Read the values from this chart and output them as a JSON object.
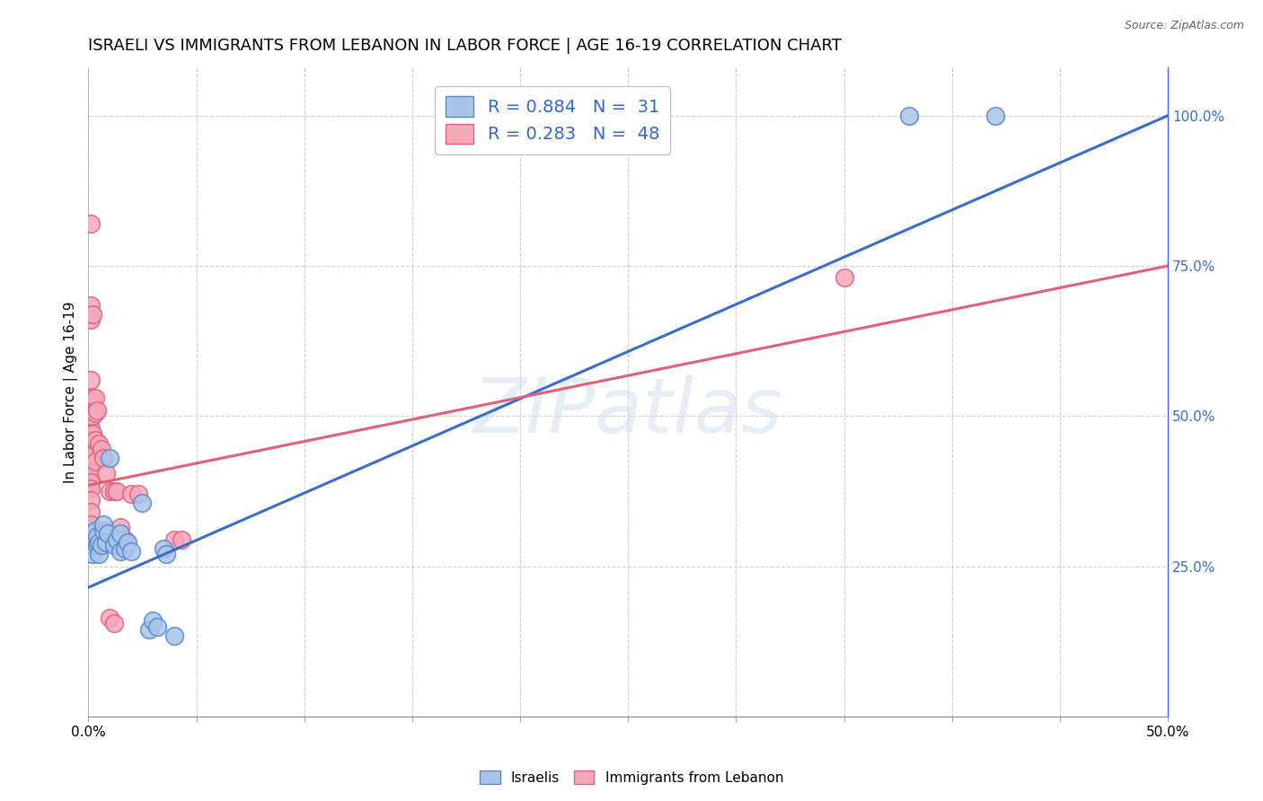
{
  "title": "ISRAELI VS IMMIGRANTS FROM LEBANON IN LABOR FORCE | AGE 16-19 CORRELATION CHART",
  "source": "Source: ZipAtlas.com",
  "ylabel": "In Labor Force | Age 16-19",
  "ylabel_right_labels": [
    "25.0%",
    "50.0%",
    "75.0%",
    "100.0%"
  ],
  "ylabel_right_positions": [
    0.25,
    0.5,
    0.75,
    1.0
  ],
  "grid_color": "#d0d0d0",
  "watermark_text": "ZIPatlas",
  "legend_blue_r": "R = 0.884",
  "legend_blue_n": "N =  31",
  "legend_pink_r": "R = 0.283",
  "legend_pink_n": "N =  48",
  "blue_color": "#aac4e8",
  "pink_color": "#f4a8b8",
  "blue_edge_color": "#5588cc",
  "pink_edge_color": "#e06080",
  "blue_line_color": "#3a6cc8",
  "pink_line_color": "#e0607a",
  "blue_scatter": [
    [
      0.001,
      0.305
    ],
    [
      0.002,
      0.285
    ],
    [
      0.002,
      0.27
    ],
    [
      0.003,
      0.295
    ],
    [
      0.003,
      0.31
    ],
    [
      0.004,
      0.285
    ],
    [
      0.004,
      0.3
    ],
    [
      0.005,
      0.27
    ],
    [
      0.005,
      0.29
    ],
    [
      0.006,
      0.285
    ],
    [
      0.007,
      0.31
    ],
    [
      0.007,
      0.32
    ],
    [
      0.008,
      0.29
    ],
    [
      0.009,
      0.305
    ],
    [
      0.01,
      0.43
    ],
    [
      0.012,
      0.285
    ],
    [
      0.013,
      0.295
    ],
    [
      0.015,
      0.275
    ],
    [
      0.015,
      0.305
    ],
    [
      0.017,
      0.28
    ],
    [
      0.018,
      0.29
    ],
    [
      0.02,
      0.275
    ],
    [
      0.025,
      0.355
    ],
    [
      0.028,
      0.145
    ],
    [
      0.03,
      0.16
    ],
    [
      0.032,
      0.15
    ],
    [
      0.035,
      0.28
    ],
    [
      0.036,
      0.27
    ],
    [
      0.04,
      0.135
    ],
    [
      0.38,
      1.0
    ],
    [
      0.42,
      1.0
    ]
  ],
  "pink_scatter": [
    [
      0.0,
      0.425
    ],
    [
      0.001,
      0.82
    ],
    [
      0.001,
      0.685
    ],
    [
      0.001,
      0.66
    ],
    [
      0.001,
      0.56
    ],
    [
      0.001,
      0.525
    ],
    [
      0.001,
      0.5
    ],
    [
      0.001,
      0.48
    ],
    [
      0.001,
      0.47
    ],
    [
      0.001,
      0.46
    ],
    [
      0.001,
      0.45
    ],
    [
      0.001,
      0.44
    ],
    [
      0.001,
      0.43
    ],
    [
      0.001,
      0.415
    ],
    [
      0.001,
      0.4
    ],
    [
      0.001,
      0.39
    ],
    [
      0.001,
      0.38
    ],
    [
      0.001,
      0.36
    ],
    [
      0.001,
      0.34
    ],
    [
      0.001,
      0.32
    ],
    [
      0.001,
      0.305
    ],
    [
      0.002,
      0.67
    ],
    [
      0.002,
      0.53
    ],
    [
      0.002,
      0.5
    ],
    [
      0.002,
      0.47
    ],
    [
      0.002,
      0.435
    ],
    [
      0.003,
      0.53
    ],
    [
      0.003,
      0.505
    ],
    [
      0.003,
      0.46
    ],
    [
      0.003,
      0.425
    ],
    [
      0.004,
      0.51
    ],
    [
      0.005,
      0.455
    ],
    [
      0.006,
      0.445
    ],
    [
      0.007,
      0.43
    ],
    [
      0.008,
      0.405
    ],
    [
      0.01,
      0.375
    ],
    [
      0.012,
      0.375
    ],
    [
      0.013,
      0.375
    ],
    [
      0.015,
      0.315
    ],
    [
      0.016,
      0.295
    ],
    [
      0.017,
      0.295
    ],
    [
      0.02,
      0.37
    ],
    [
      0.023,
      0.37
    ],
    [
      0.04,
      0.295
    ],
    [
      0.043,
      0.295
    ],
    [
      0.35,
      0.73
    ],
    [
      0.01,
      0.165
    ],
    [
      0.012,
      0.155
    ]
  ],
  "xlim": [
    0.0,
    0.5
  ],
  "ylim": [
    0.0,
    1.08
  ],
  "xtick_positions": [
    0.0,
    0.5
  ],
  "xtick_labels": [
    "0.0%",
    "50.0%"
  ],
  "blue_line_x": [
    0.0,
    0.5
  ],
  "blue_line_y": [
    0.215,
    1.0
  ],
  "pink_line_x": [
    0.0,
    0.5
  ],
  "pink_line_y": [
    0.385,
    0.75
  ],
  "marker_size": 200,
  "background_color": "#ffffff",
  "legend_fontsize": 14,
  "title_fontsize": 13,
  "axis_label_fontsize": 11,
  "tick_fontsize": 11,
  "num_xgrid_lines": 10,
  "num_ygrid_lines": 4
}
